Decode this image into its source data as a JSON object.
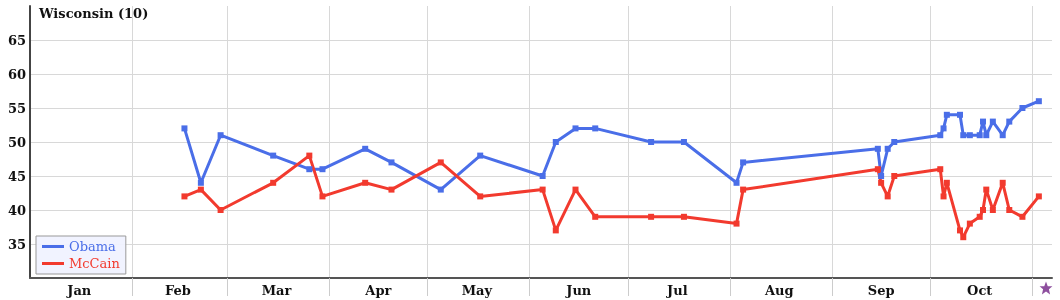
{
  "chart_data": {
    "type": "line",
    "title": "Wisconsin (10)",
    "xlim": [
      "--01-01",
      "--11-07"
    ],
    "ylim": [
      30,
      70
    ],
    "yticks": [
      35,
      40,
      45,
      50,
      55,
      60,
      65
    ],
    "xticks": [
      {
        "value": "--01-16",
        "label": "Jan"
      },
      {
        "value": "--02-15",
        "label": "Feb"
      },
      {
        "value": "--03-16",
        "label": "Mar"
      },
      {
        "value": "--04-16",
        "label": "Apr"
      },
      {
        "value": "--05-16",
        "label": "May"
      },
      {
        "value": "--06-16",
        "label": "Jun"
      },
      {
        "value": "--07-16",
        "label": "Jul"
      },
      {
        "value": "--08-16",
        "label": "Aug"
      },
      {
        "value": "--09-16",
        "label": "Sep"
      },
      {
        "value": "--10-16",
        "label": "Oct"
      },
      {
        "value": "--02-01",
        "label": null
      },
      {
        "value": "--03-01",
        "label": null
      },
      {
        "value": "--04-01",
        "label": null
      },
      {
        "value": "--05-01",
        "label": null
      },
      {
        "value": "--06-01",
        "label": null
      },
      {
        "value": "--07-01",
        "label": null
      },
      {
        "value": "--08-01",
        "label": null
      },
      {
        "value": "--09-01",
        "label": null
      },
      {
        "value": "--10-01",
        "label": null
      },
      {
        "value": "--11-01",
        "label": null
      }
    ],
    "grid": true,
    "legend": "bottom left",
    "marker": "square",
    "line_style": "solid",
    "series": [
      {
        "name": "Obama",
        "color": "#4a6ee8",
        "x": [
          "--02-17",
          "--02-22",
          "--02-28",
          "--03-15",
          "--03-26",
          "--03-30",
          "--04-12",
          "--04-20",
          "--05-05",
          "--05-17",
          "--06-05",
          "--06-09",
          "--06-15",
          "--06-21",
          "--07-08",
          "--07-18",
          "--08-03",
          "--08-05",
          "--09-15",
          "--09-16",
          "--09-18",
          "--09-20",
          "--10-04",
          "--10-05",
          "--10-06",
          "--10-10",
          "--10-11",
          "--10-13",
          "--10-16",
          "--10-17",
          "--10-18",
          "--10-20",
          "--10-23",
          "--10-25",
          "--10-29",
          "--11-03"
        ],
        "values": [
          52,
          44,
          51,
          48,
          46,
          46,
          49,
          47,
          43,
          48,
          45,
          50,
          52,
          52,
          50,
          50,
          44,
          47,
          49,
          45,
          49,
          50,
          51,
          52,
          54,
          54,
          51,
          51,
          51,
          53,
          51,
          53,
          51,
          53,
          55,
          56
        ]
      },
      {
        "name": "McCain",
        "color": "#f23a2e",
        "x": [
          "--02-17",
          "--02-22",
          "--02-28",
          "--03-15",
          "--03-26",
          "--03-30",
          "--04-12",
          "--04-20",
          "--05-05",
          "--05-17",
          "--06-05",
          "--06-09",
          "--06-15",
          "--06-21",
          "--07-08",
          "--07-18",
          "--08-03",
          "--08-05",
          "--09-15",
          "--09-16",
          "--09-18",
          "--09-20",
          "--10-04",
          "--10-05",
          "--10-06",
          "--10-10",
          "--10-11",
          "--10-13",
          "--10-16",
          "--10-17",
          "--10-18",
          "--10-20",
          "--10-23",
          "--10-25",
          "--10-29",
          "--11-03"
        ],
        "values": [
          42,
          43,
          40,
          44,
          48,
          42,
          44,
          43,
          47,
          42,
          43,
          37,
          43,
          39,
          39,
          39,
          38,
          43,
          46,
          44,
          42,
          45,
          46,
          42,
          44,
          37,
          36,
          38,
          39,
          40,
          43,
          40,
          44,
          40,
          39,
          42
        ]
      }
    ]
  }
}
